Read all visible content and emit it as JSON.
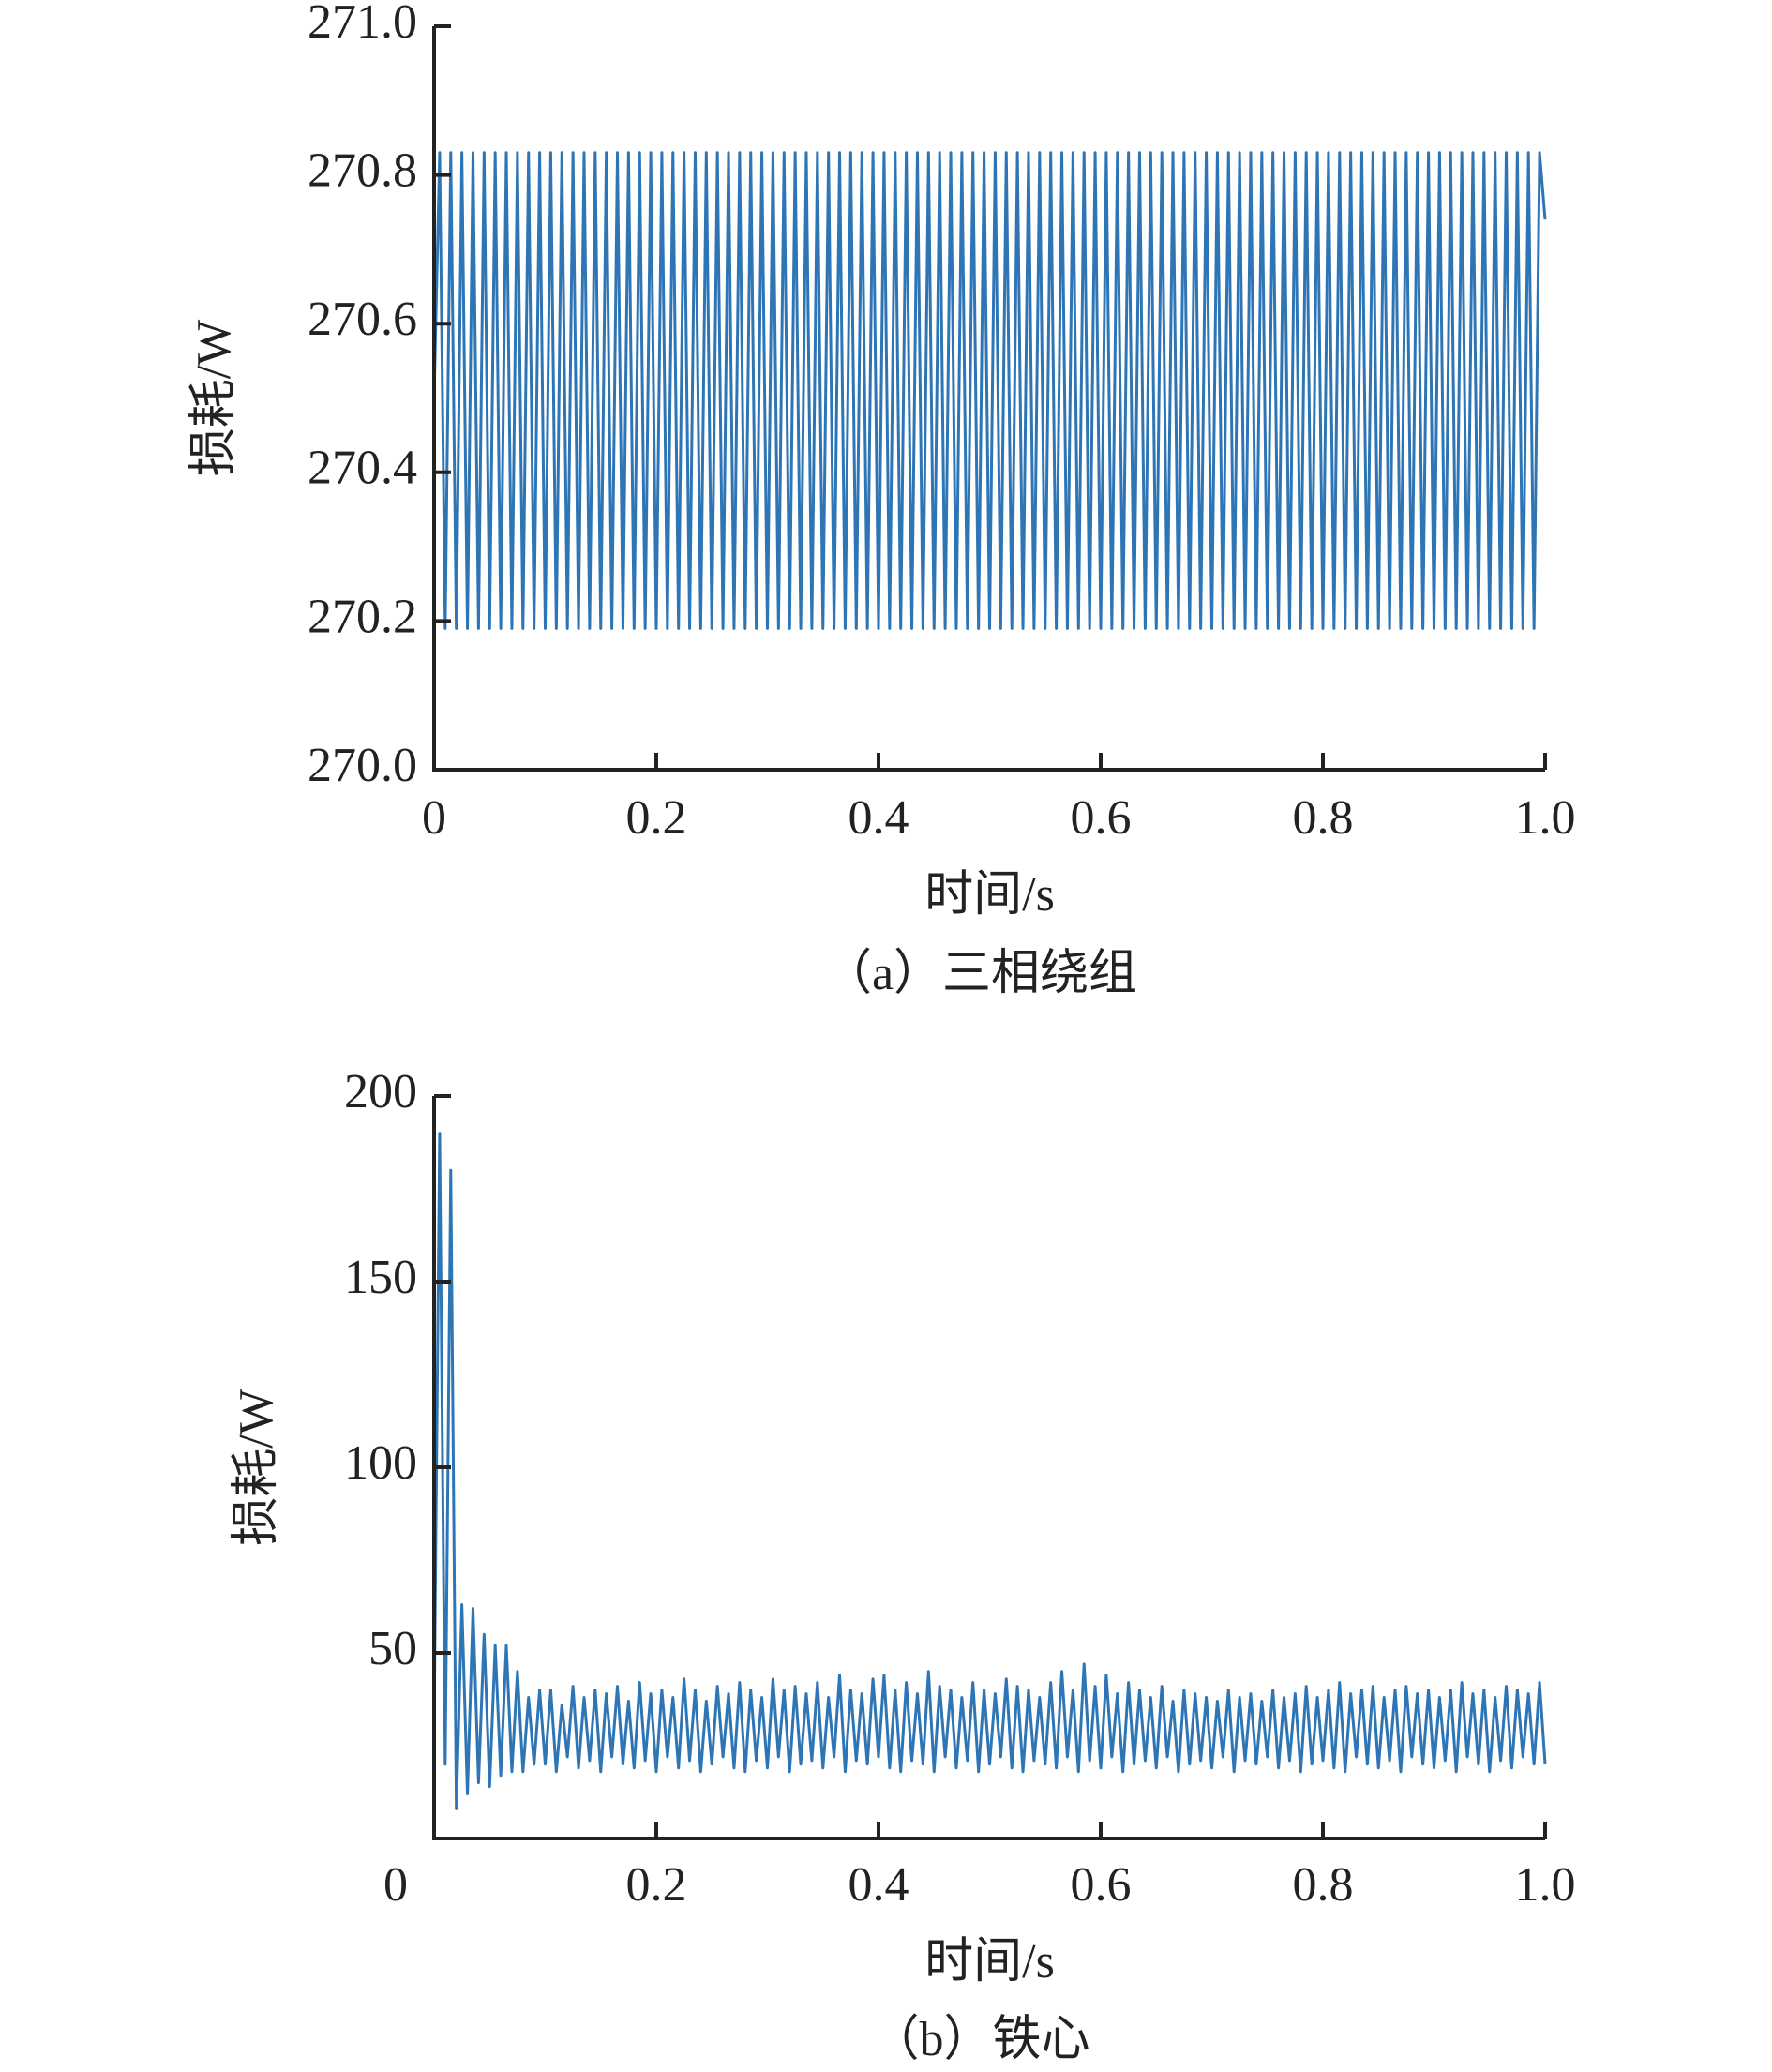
{
  "chart_data": [
    {
      "type": "line",
      "caption": "（a）三相绕组",
      "xlabel": "时间/s",
      "ylabel": "损耗/W",
      "color": "#2e75b6",
      "xlim": [
        0,
        1
      ],
      "xticks": [
        0,
        0.2,
        0.4,
        0.6,
        0.8,
        {
          "value": 1,
          "label": "1.0"
        }
      ],
      "ylim": [
        270,
        271
      ],
      "yticks": [
        {
          "value": 270,
          "label": "270.0"
        },
        270.2,
        270.4,
        270.6,
        270.8,
        {
          "value": 271,
          "label": "271.0"
        }
      ],
      "x": [
        0,
        0.005,
        0.01,
        0.015,
        0.02,
        0.025,
        0.03,
        0.035,
        0.04,
        0.045,
        0.05,
        0.055,
        0.06,
        0.065,
        0.07,
        0.075,
        0.08,
        0.085,
        0.09,
        0.095,
        0.1,
        0.105,
        0.11,
        0.115,
        0.12,
        0.125,
        0.13,
        0.135,
        0.14,
        0.145,
        0.15,
        0.155,
        0.16,
        0.165,
        0.17,
        0.175,
        0.18,
        0.185,
        0.19,
        0.195,
        0.2,
        0.205,
        0.21,
        0.215,
        0.22,
        0.225,
        0.23,
        0.235,
        0.24,
        0.245,
        0.25,
        0.255,
        0.26,
        0.265,
        0.27,
        0.275,
        0.28,
        0.285,
        0.29,
        0.295,
        0.3,
        0.305,
        0.31,
        0.315,
        0.32,
        0.325,
        0.33,
        0.335,
        0.34,
        0.345,
        0.35,
        0.355,
        0.36,
        0.365,
        0.37,
        0.375,
        0.38,
        0.385,
        0.39,
        0.395,
        0.4,
        0.405,
        0.41,
        0.415,
        0.42,
        0.425,
        0.43,
        0.435,
        0.44,
        0.445,
        0.45,
        0.455,
        0.46,
        0.465,
        0.47,
        0.475,
        0.48,
        0.485,
        0.49,
        0.495,
        0.5,
        0.505,
        0.51,
        0.515,
        0.52,
        0.525,
        0.53,
        0.535,
        0.54,
        0.545,
        0.55,
        0.555,
        0.56,
        0.565,
        0.57,
        0.575,
        0.58,
        0.585,
        0.59,
        0.595,
        0.6,
        0.605,
        0.61,
        0.615,
        0.62,
        0.625,
        0.63,
        0.635,
        0.64,
        0.645,
        0.65,
        0.655,
        0.66,
        0.665,
        0.67,
        0.675,
        0.68,
        0.685,
        0.69,
        0.695,
        0.7,
        0.705,
        0.71,
        0.715,
        0.72,
        0.725,
        0.73,
        0.735,
        0.74,
        0.745,
        0.75,
        0.755,
        0.76,
        0.765,
        0.77,
        0.775,
        0.78,
        0.785,
        0.79,
        0.795,
        0.8,
        0.805,
        0.81,
        0.815,
        0.82,
        0.825,
        0.83,
        0.835,
        0.84,
        0.845,
        0.85,
        0.855,
        0.86,
        0.865,
        0.87,
        0.875,
        0.88,
        0.885,
        0.89,
        0.895,
        0.9,
        0.905,
        0.91,
        0.915,
        0.92,
        0.925,
        0.93,
        0.935,
        0.94,
        0.945,
        0.95,
        0.955,
        0.96,
        0.965,
        0.97,
        0.975,
        0.98,
        0.985,
        0.99,
        0.995,
        1
      ],
      "values": [
        270.5,
        270.83,
        270.19,
        270.83,
        270.19,
        270.83,
        270.19,
        270.83,
        270.19,
        270.83,
        270.19,
        270.83,
        270.19,
        270.83,
        270.19,
        270.83,
        270.19,
        270.83,
        270.19,
        270.83,
        270.19,
        270.83,
        270.19,
        270.83,
        270.19,
        270.83,
        270.19,
        270.83,
        270.19,
        270.83,
        270.19,
        270.83,
        270.19,
        270.83,
        270.19,
        270.83,
        270.19,
        270.83,
        270.19,
        270.83,
        270.19,
        270.83,
        270.19,
        270.83,
        270.19,
        270.83,
        270.19,
        270.83,
        270.19,
        270.83,
        270.19,
        270.83,
        270.19,
        270.83,
        270.19,
        270.83,
        270.19,
        270.83,
        270.19,
        270.83,
        270.19,
        270.83,
        270.19,
        270.83,
        270.19,
        270.83,
        270.19,
        270.83,
        270.19,
        270.83,
        270.19,
        270.83,
        270.19,
        270.83,
        270.19,
        270.83,
        270.19,
        270.83,
        270.19,
        270.83,
        270.19,
        270.83,
        270.19,
        270.83,
        270.19,
        270.83,
        270.19,
        270.83,
        270.19,
        270.83,
        270.19,
        270.83,
        270.19,
        270.83,
        270.19,
        270.83,
        270.19,
        270.83,
        270.19,
        270.83,
        270.19,
        270.83,
        270.19,
        270.83,
        270.19,
        270.83,
        270.19,
        270.83,
        270.19,
        270.83,
        270.19,
        270.83,
        270.19,
        270.83,
        270.19,
        270.83,
        270.19,
        270.83,
        270.19,
        270.83,
        270.19,
        270.83,
        270.19,
        270.83,
        270.19,
        270.83,
        270.19,
        270.83,
        270.19,
        270.83,
        270.19,
        270.83,
        270.19,
        270.83,
        270.19,
        270.83,
        270.19,
        270.83,
        270.19,
        270.83,
        270.19,
        270.83,
        270.19,
        270.83,
        270.19,
        270.83,
        270.19,
        270.83,
        270.19,
        270.83,
        270.19,
        270.83,
        270.19,
        270.83,
        270.19,
        270.83,
        270.19,
        270.83,
        270.19,
        270.83,
        270.19,
        270.83,
        270.19,
        270.83,
        270.19,
        270.83,
        270.19,
        270.83,
        270.19,
        270.83,
        270.19,
        270.83,
        270.19,
        270.83,
        270.19,
        270.83,
        270.19,
        270.83,
        270.19,
        270.83,
        270.19,
        270.83,
        270.19,
        270.83,
        270.19,
        270.83,
        270.19,
        270.83,
        270.19,
        270.83,
        270.19,
        270.83,
        270.19,
        270.83,
        270.19,
        270.83,
        270.19,
        270.83,
        270.19,
        270.83,
        270.74
      ]
    },
    {
      "type": "line",
      "caption": "（b）铁心",
      "xlabel": "时间/s",
      "ylabel": "损耗/W",
      "color": "#2e75b6",
      "xlim": [
        0,
        1
      ],
      "xticks": [
        0,
        0.2,
        0.4,
        0.6,
        0.8,
        {
          "value": 1,
          "label": "1.0"
        }
      ],
      "ylim": [
        0,
        200
      ],
      "yticks": [
        50,
        100,
        150,
        200
      ],
      "x": [
        0,
        0.005,
        0.01,
        0.015,
        0.02,
        0.025,
        0.03,
        0.035,
        0.04,
        0.045,
        0.05,
        0.055,
        0.06,
        0.065,
        0.07,
        0.075,
        0.08,
        0.085,
        0.09,
        0.095,
        0.1,
        0.105,
        0.11,
        0.115,
        0.12,
        0.125,
        0.13,
        0.135,
        0.14,
        0.145,
        0.15,
        0.155,
        0.16,
        0.165,
        0.17,
        0.175,
        0.18,
        0.185,
        0.19,
        0.195,
        0.2,
        0.205,
        0.21,
        0.215,
        0.22,
        0.225,
        0.23,
        0.235,
        0.24,
        0.245,
        0.25,
        0.255,
        0.26,
        0.265,
        0.27,
        0.275,
        0.28,
        0.285,
        0.29,
        0.295,
        0.3,
        0.305,
        0.31,
        0.315,
        0.32,
        0.325,
        0.33,
        0.335,
        0.34,
        0.345,
        0.35,
        0.355,
        0.36,
        0.365,
        0.37,
        0.375,
        0.38,
        0.385,
        0.39,
        0.395,
        0.4,
        0.405,
        0.41,
        0.415,
        0.42,
        0.425,
        0.43,
        0.435,
        0.44,
        0.445,
        0.45,
        0.455,
        0.46,
        0.465,
        0.47,
        0.475,
        0.48,
        0.485,
        0.49,
        0.495,
        0.5,
        0.505,
        0.51,
        0.515,
        0.52,
        0.525,
        0.53,
        0.535,
        0.54,
        0.545,
        0.55,
        0.555,
        0.56,
        0.565,
        0.57,
        0.575,
        0.58,
        0.585,
        0.59,
        0.595,
        0.6,
        0.605,
        0.61,
        0.615,
        0.62,
        0.625,
        0.63,
        0.635,
        0.64,
        0.645,
        0.65,
        0.655,
        0.66,
        0.665,
        0.67,
        0.675,
        0.68,
        0.685,
        0.69,
        0.695,
        0.7,
        0.705,
        0.71,
        0.715,
        0.72,
        0.725,
        0.73,
        0.735,
        0.74,
        0.745,
        0.75,
        0.755,
        0.76,
        0.765,
        0.77,
        0.775,
        0.78,
        0.785,
        0.79,
        0.795,
        0.8,
        0.805,
        0.81,
        0.815,
        0.82,
        0.825,
        0.83,
        0.835,
        0.84,
        0.845,
        0.85,
        0.855,
        0.86,
        0.865,
        0.87,
        0.875,
        0.88,
        0.885,
        0.89,
        0.895,
        0.9,
        0.905,
        0.91,
        0.915,
        0.92,
        0.925,
        0.93,
        0.935,
        0.94,
        0.945,
        0.95,
        0.955,
        0.96,
        0.965,
        0.97,
        0.975,
        0.98,
        0.985,
        0.99,
        0.995,
        1
      ],
      "values": [
        30,
        190,
        20,
        180,
        8,
        63,
        12,
        62,
        15,
        55,
        14,
        52,
        17,
        52,
        18,
        45,
        18,
        38,
        20,
        40,
        20,
        40,
        18,
        36,
        22,
        41,
        19,
        38,
        21,
        40,
        18,
        39,
        22,
        41,
        20,
        37,
        19,
        42,
        21,
        39,
        18,
        40,
        22,
        38,
        19,
        43,
        21,
        40,
        18,
        37,
        20,
        41,
        22,
        39,
        19,
        42,
        18,
        40,
        21,
        38,
        19,
        43,
        22,
        40,
        18,
        41,
        20,
        39,
        21,
        42,
        19,
        38,
        22,
        44,
        18,
        40,
        21,
        39,
        20,
        43,
        22,
        44,
        19,
        40,
        18,
        42,
        21,
        39,
        20,
        45,
        18,
        41,
        22,
        40,
        19,
        38,
        21,
        42,
        18,
        40,
        20,
        39,
        22,
        43,
        19,
        41,
        18,
        40,
        21,
        38,
        20,
        42,
        19,
        45,
        22,
        40,
        18,
        47,
        21,
        41,
        19,
        44,
        22,
        39,
        18,
        42,
        20,
        40,
        21,
        38,
        19,
        41,
        22,
        37,
        18,
        40,
        20,
        39,
        21,
        38,
        19,
        37,
        22,
        40,
        18,
        38,
        21,
        39,
        20,
        37,
        22,
        40,
        19,
        38,
        21,
        39,
        18,
        41,
        20,
        38,
        21,
        40,
        19,
        42,
        18,
        39,
        22,
        40,
        20,
        41,
        19,
        38,
        21,
        40,
        18,
        41,
        22,
        39,
        20,
        40,
        19,
        38,
        21,
        40,
        18,
        42,
        22,
        39,
        20,
        40,
        18,
        38,
        21,
        41,
        19,
        40,
        22,
        39,
        20,
        42,
        20
      ]
    }
  ]
}
